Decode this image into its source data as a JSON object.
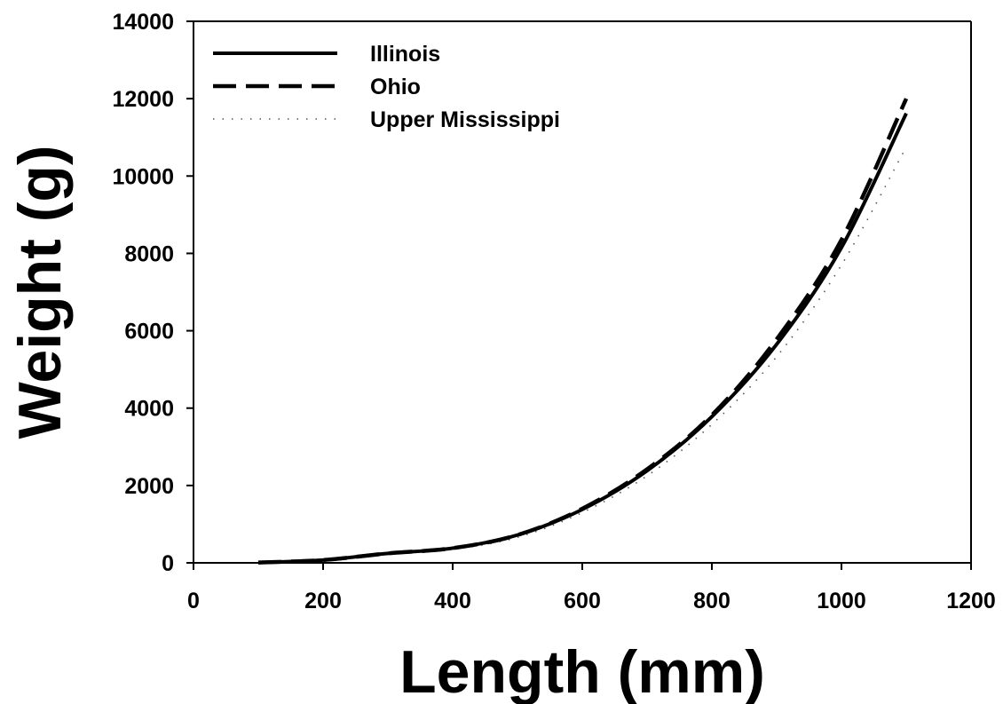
{
  "chart_data": {
    "type": "line",
    "title": "",
    "xlabel": "Length (mm)",
    "ylabel": "Weight (g)",
    "xlim": [
      0,
      1200
    ],
    "ylim": [
      0,
      14000
    ],
    "xticks": [
      "0",
      "200",
      "400",
      "600",
      "800",
      "1000",
      "1200"
    ],
    "yticks": [
      "0",
      "2000",
      "4000",
      "6000",
      "8000",
      "10000",
      "12000",
      "14000"
    ],
    "grid": false,
    "legend_position": "top-left",
    "x": [
      100,
      200,
      300,
      400,
      500,
      600,
      700,
      800,
      900,
      1000,
      1100
    ],
    "series": [
      {
        "name": "Illinois",
        "style": "solid",
        "values": [
          9,
          72,
          245,
          380,
          720,
          1380,
          2380,
          3780,
          5650,
          8150,
          11620
        ]
      },
      {
        "name": "Ohio",
        "style": "dashed",
        "values": [
          9,
          72,
          245,
          380,
          720,
          1400,
          2420,
          3820,
          5780,
          8350,
          12000
        ]
      },
      {
        "name": "Upper Mississippi",
        "style": "dotted",
        "values": [
          8,
          65,
          225,
          350,
          660,
          1300,
          2250,
          3580,
          5330,
          7700,
          10750
        ]
      }
    ]
  }
}
